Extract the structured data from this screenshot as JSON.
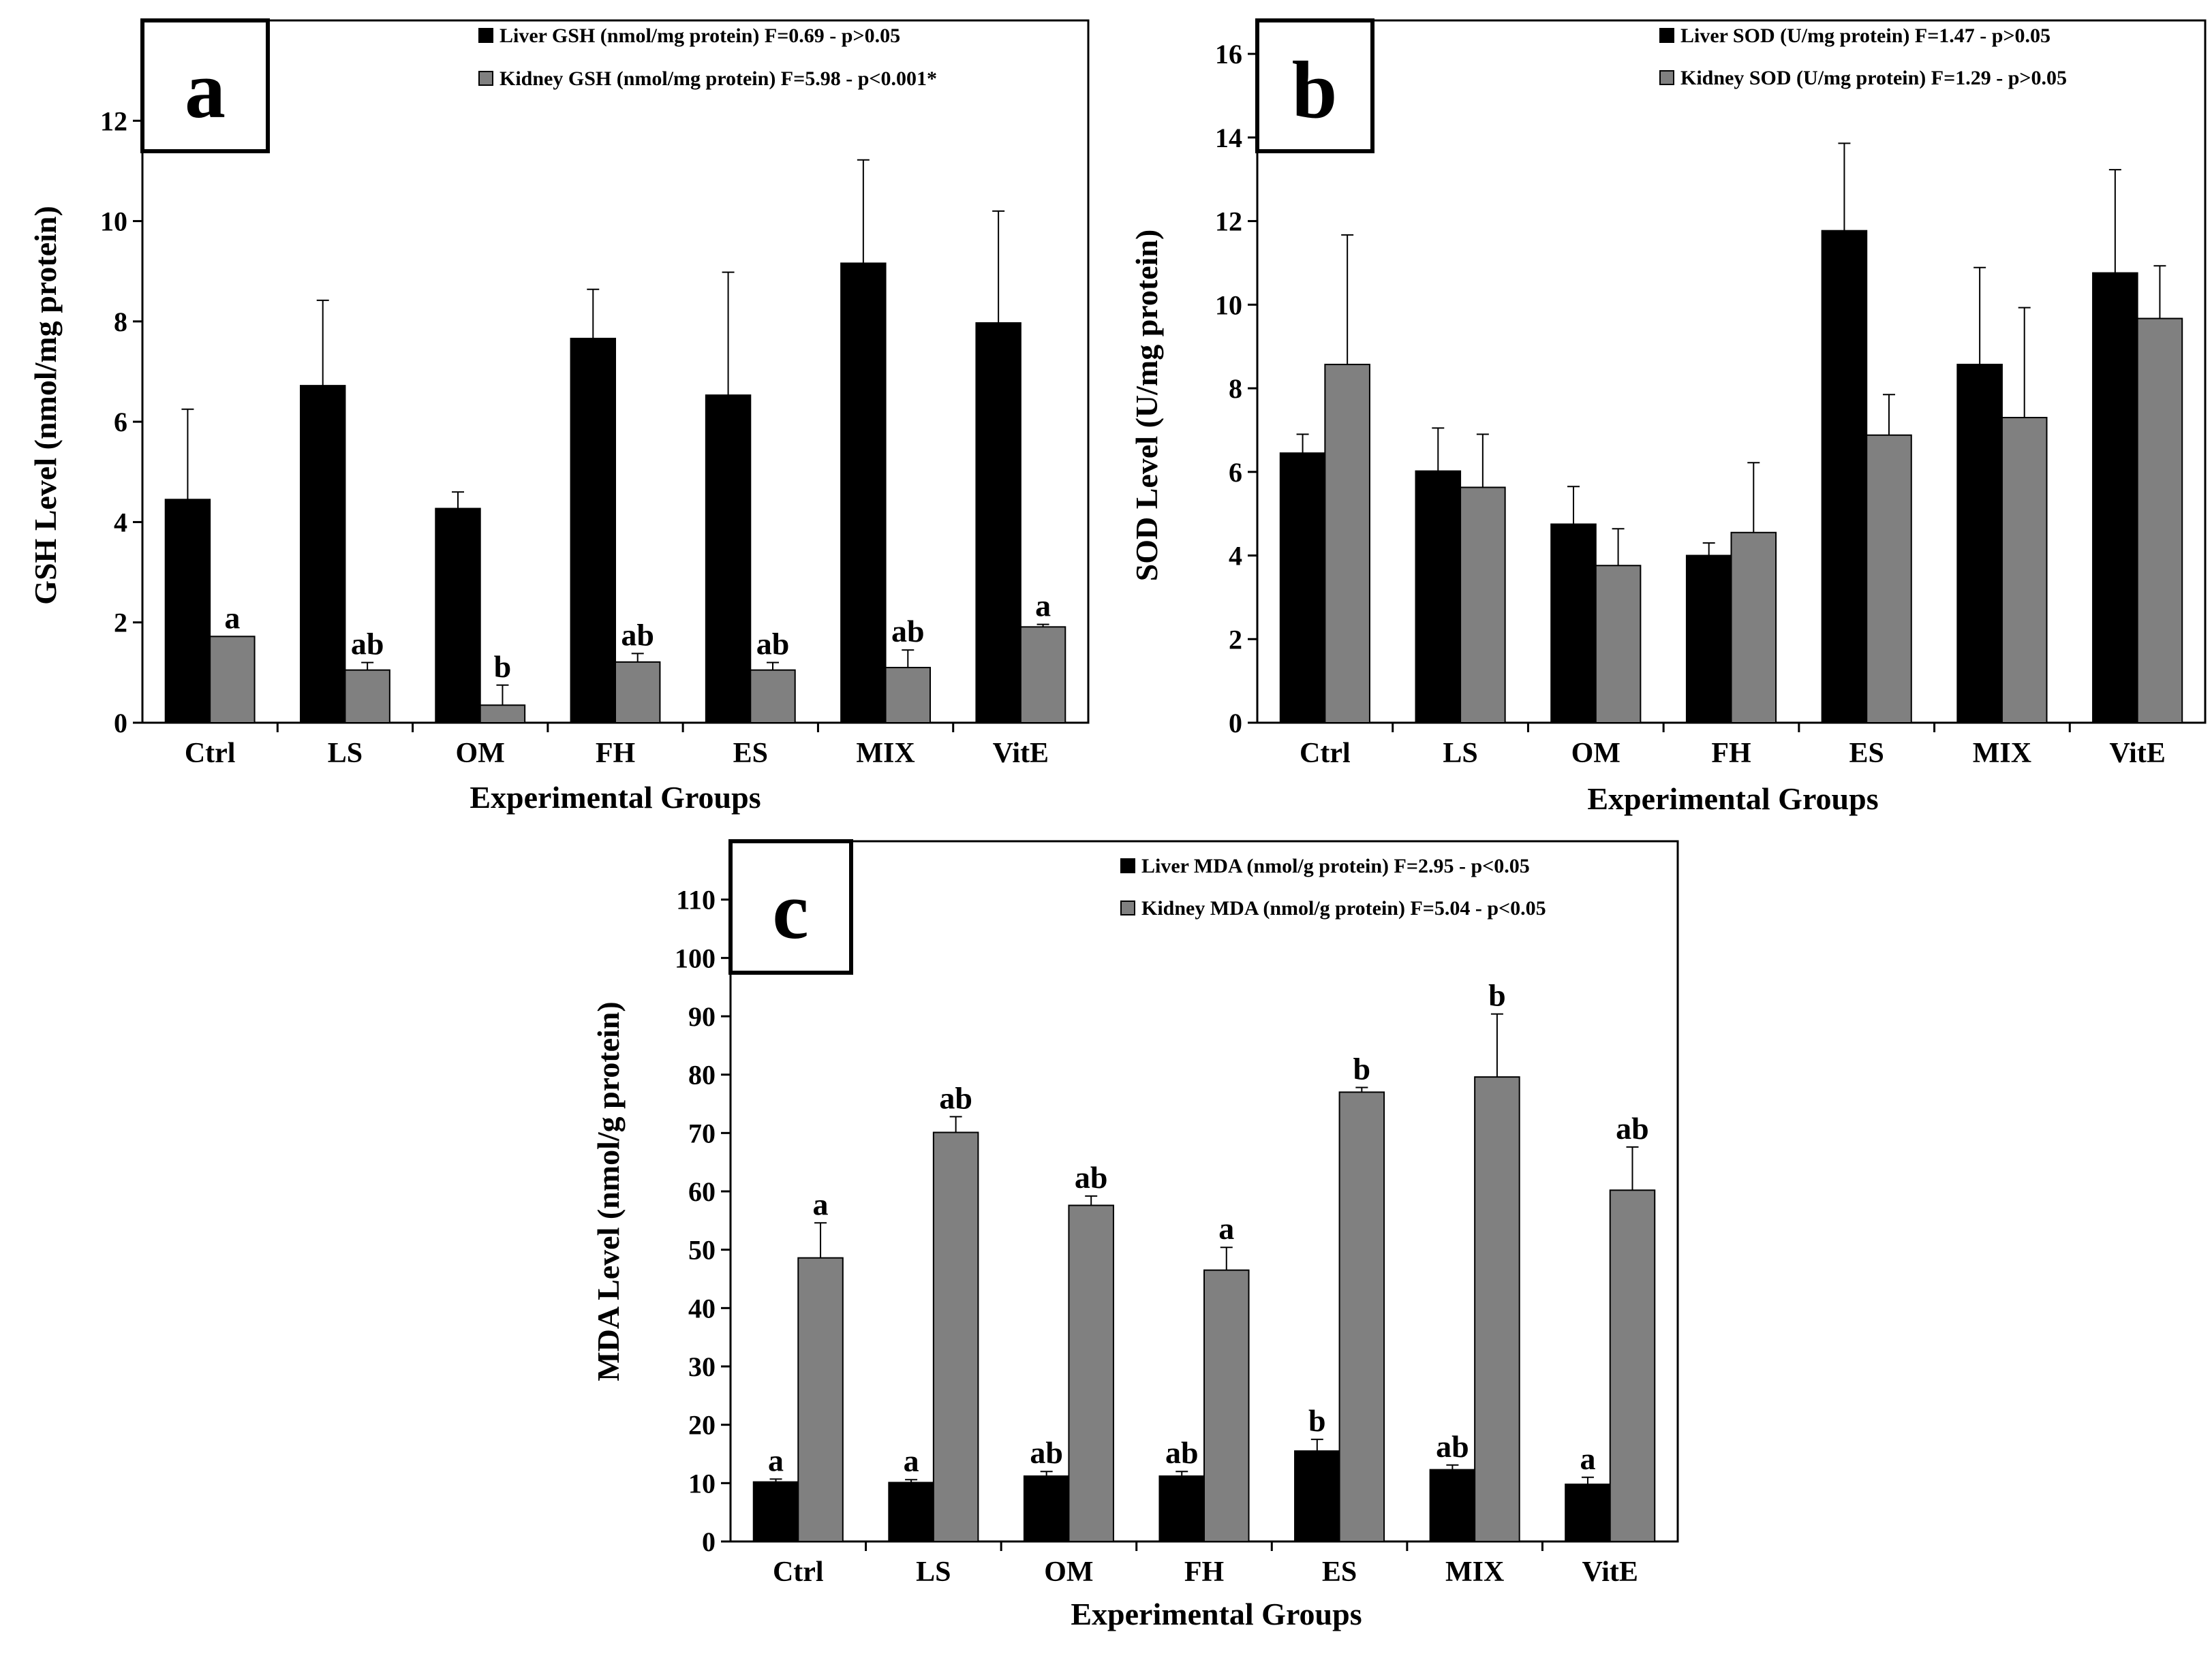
{
  "chart_data": [
    {
      "type": "bar",
      "panel_label": "a",
      "categories": [
        "Ctrl",
        "LS",
        "OM",
        "FH",
        "ES",
        "MIX",
        "VitE"
      ],
      "xlabel": "Experimental Groups",
      "ylabel": "GSH Level (nmol/mg protein)",
      "ylim": [
        0,
        14
      ],
      "yticks": [
        0,
        2,
        4,
        6,
        8,
        10,
        12
      ],
      "legend_position": "top-right",
      "grid": false,
      "series": [
        {
          "name": "Liver GSH (nmol/mg protein) F=0.69 - p>0.05",
          "color": "#000000",
          "values": [
            4.45,
            6.72,
            4.27,
            7.66,
            6.53,
            9.16,
            7.97
          ],
          "errors": [
            1.8,
            1.7,
            0.33,
            0.98,
            2.45,
            2.06,
            2.23
          ],
          "labels": [
            "",
            "",
            "",
            "",
            "",
            "",
            ""
          ]
        },
        {
          "name": "Kidney GSH (nmol/mg protein) F=5.98 -  p<0.001*",
          "color": "#808080",
          "values": [
            1.72,
            1.05,
            0.35,
            1.21,
            1.05,
            1.1,
            1.91
          ],
          "errors": [
            0.0,
            0.15,
            0.4,
            0.17,
            0.15,
            0.35,
            0.05
          ],
          "labels": [
            "a",
            "ab",
            "b",
            "ab",
            "ab",
            "ab",
            "a"
          ]
        }
      ]
    },
    {
      "type": "bar",
      "panel_label": "b",
      "categories": [
        "Ctrl",
        "LS",
        "OM",
        "FH",
        "ES",
        "MIX",
        "VitE"
      ],
      "xlabel": "Experimental Groups",
      "ylabel": "SOD Level (U/mg protein)",
      "ylim": [
        0,
        16.8
      ],
      "yticks": [
        0,
        2,
        4,
        6,
        8,
        10,
        12,
        14,
        16
      ],
      "legend_position": "top-right",
      "grid": false,
      "series": [
        {
          "name": "Liver SOD (U/mg protein) F=1.47 - p>0.05",
          "color": "#000000",
          "values": [
            6.45,
            6.02,
            4.75,
            4.0,
            11.77,
            8.57,
            10.76
          ],
          "errors": [
            0.45,
            1.03,
            0.9,
            0.3,
            2.09,
            2.32,
            2.47
          ],
          "labels": [
            "",
            "",
            "",
            "",
            "",
            "",
            ""
          ]
        },
        {
          "name": "Kidney SOD (U/mg protein)  F=1.29 - p>0.05",
          "color": "#808080",
          "values": [
            8.57,
            5.63,
            3.76,
            4.55,
            6.88,
            7.3,
            9.67
          ],
          "errors": [
            3.1,
            1.27,
            0.88,
            1.67,
            0.97,
            2.63,
            1.26
          ],
          "labels": [
            "",
            "",
            "",
            "",
            "",
            "",
            ""
          ]
        }
      ]
    },
    {
      "type": "bar",
      "panel_label": "c",
      "categories": [
        "Ctrl",
        "LS",
        "OM",
        "FH",
        "ES",
        "MIX",
        "VitE"
      ],
      "xlabel": "Experimental Groups",
      "ylabel": "MDA Level (nmol/g protein)",
      "ylim": [
        0,
        120
      ],
      "yticks": [
        0,
        10,
        20,
        30,
        40,
        50,
        60,
        70,
        80,
        90,
        100,
        110
      ],
      "legend_position": "top-right",
      "grid": false,
      "series": [
        {
          "name": "Liver MDA (nmol/g protein) F=2.95 - p<0.05",
          "color": "#000000",
          "values": [
            10.2,
            10.1,
            11.2,
            11.2,
            15.5,
            12.3,
            9.8
          ],
          "errors": [
            0.5,
            0.5,
            0.8,
            0.8,
            2.0,
            0.8,
            1.2
          ],
          "labels": [
            "a",
            "a",
            "ab",
            "ab",
            "b",
            "ab",
            "a"
          ]
        },
        {
          "name": "Kidney MDA (nmol/g protein) F=5.04 - p<0.05",
          "color": "#808080",
          "values": [
            48.6,
            70.1,
            57.6,
            46.5,
            77.0,
            79.6,
            60.2
          ],
          "errors": [
            6.0,
            2.7,
            1.6,
            3.9,
            0.8,
            10.8,
            7.4
          ],
          "labels": [
            "a",
            "ab",
            "ab",
            "a",
            "b",
            "b",
            "ab"
          ]
        }
      ]
    }
  ]
}
